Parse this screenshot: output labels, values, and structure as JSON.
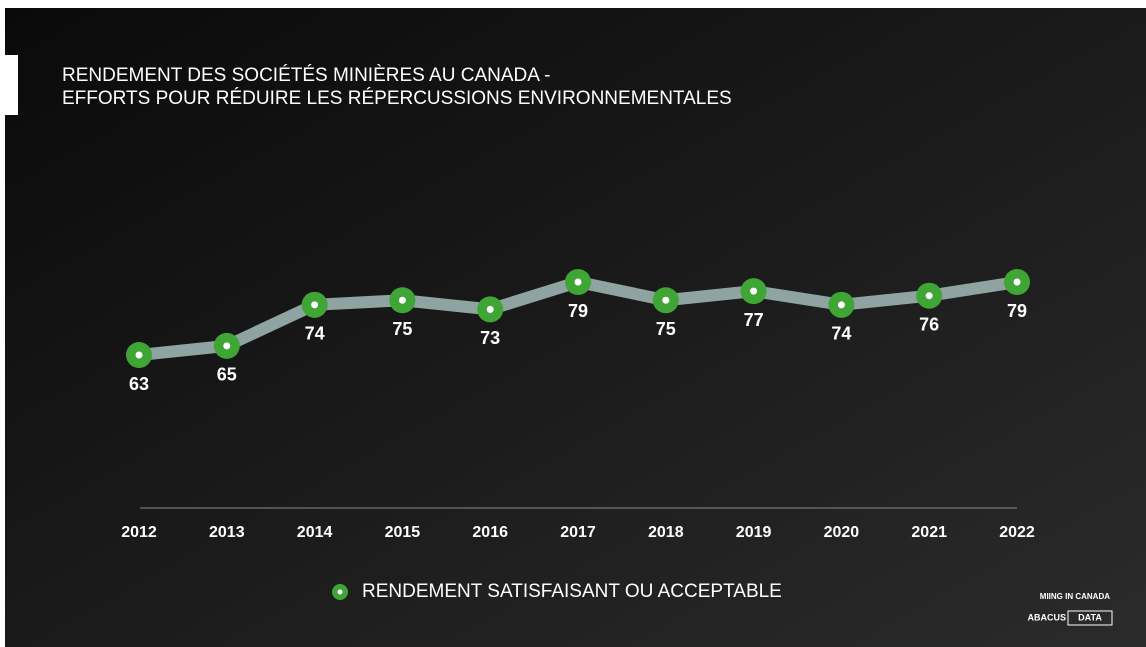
{
  "chart_data": {
    "type": "line",
    "title": "RENDEMENT DES SOCIÉTÉS MINIÈRES AU CANADA -",
    "subtitle": "EFFORTS POUR RÉDUIRE LES RÉPERCUSSIONS ENVIRONNEMENTALES",
    "categories": [
      "2012",
      "2013",
      "2014",
      "2015",
      "2016",
      "2017",
      "2018",
      "2019",
      "2020",
      "2021",
      "2022"
    ],
    "series": [
      {
        "name": "RENDEMENT SATISFAISANT OU ACCEPTABLE",
        "color": "#3fa535",
        "line_color": "#8fa3a0",
        "values": [
          63,
          65,
          74,
          75,
          73,
          79,
          75,
          77,
          74,
          76,
          79
        ]
      }
    ]
  },
  "footer": {
    "source": "MIING IN CANADA",
    "logo_left": "ABACUS",
    "logo_right": "DATA"
  }
}
